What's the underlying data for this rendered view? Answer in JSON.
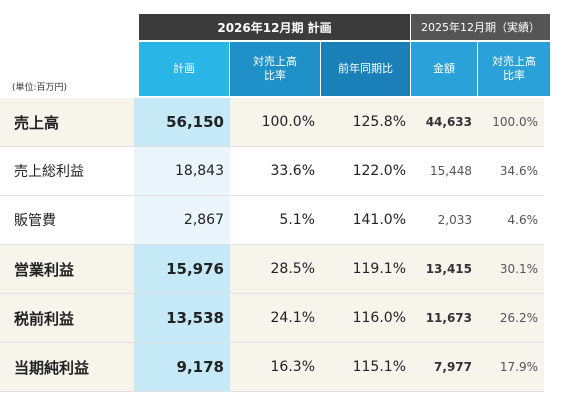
{
  "groups": {
    "plan": "2026年12月期 計画",
    "prev": "2025年12月期（実績）"
  },
  "colors": {
    "plan_head": "#29b6e6",
    "ratio_head": "#2090c8",
    "yoy_head": "#1b7fb8",
    "prev_head": "#2aa2d9"
  },
  "headers": {
    "plan": "計画",
    "ratio": [
      "対売上高",
      "比率"
    ],
    "yoy": "前年同期比",
    "amount": "金額",
    "prev_ratio": [
      "対売上高",
      "比率"
    ]
  },
  "unit": "(単位:百万円)",
  "rows": [
    {
      "label": "売上高",
      "plan": "56,150",
      "ratio": "100.0%",
      "yoy": "125.8%",
      "amount": "44,633",
      "prev_ratio": "100.0%"
    },
    {
      "label": "売上総利益",
      "plan": "18,843",
      "ratio": "33.6%",
      "yoy": "122.0%",
      "amount": "15,448",
      "prev_ratio": "34.6%"
    },
    {
      "label": "販管費",
      "plan": "2,867",
      "ratio": "5.1%",
      "yoy": "141.0%",
      "amount": "2,033",
      "prev_ratio": "4.6%"
    },
    {
      "label": "営業利益",
      "plan": "15,976",
      "ratio": "28.5%",
      "yoy": "119.1%",
      "amount": "13,415",
      "prev_ratio": "30.1%"
    },
    {
      "label": "税前利益",
      "plan": "13,538",
      "ratio": "24.1%",
      "yoy": "116.0%",
      "amount": "11,673",
      "prev_ratio": "26.2%"
    },
    {
      "label": "当期純利益",
      "plan": "9,178",
      "ratio": "16.3%",
      "yoy": "115.1%",
      "amount": "7,977",
      "prev_ratio": "17.9%"
    }
  ]
}
